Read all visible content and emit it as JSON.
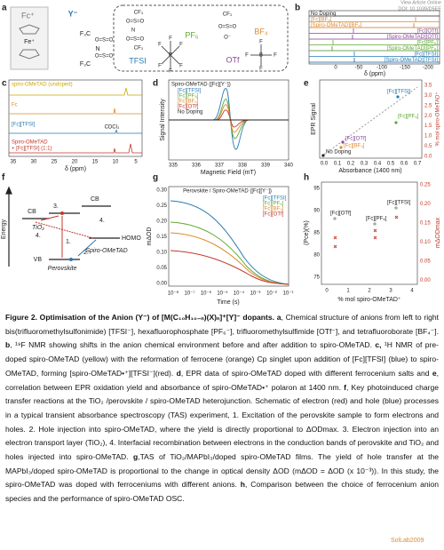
{
  "watermark": {
    "view": "View Article Online",
    "doi": "DOI: 10.1039/D5EE",
    "bottom": "SolLab2009"
  },
  "panels": {
    "a": {
      "label": "a",
      "fc": "Fc⁺",
      "fe": "Fe⁺",
      "y": "Y⁻",
      "f3c": "F₃C",
      "so2": "O=S=O",
      "n": "N",
      "cf3": "CF₃",
      "o": "O⁻",
      "f": "F",
      "p": "P",
      "b": "B",
      "names": [
        "TFSI",
        "PF₆",
        "OTf",
        "BF₄"
      ]
    },
    "b": {
      "label": "b",
      "traces": [
        "No Doping",
        "[Fc][BF₄]",
        "[Spiro-OMeTAD][BF₄]",
        "[Fc][OTf]",
        "[Spiro-OMeTAD][OTf]",
        "[Fc][PF₆]",
        "[Spiro-OMeTAD][PF₆]",
        "[Fc][TFSI]",
        "[Spiro-OMeTAD][TFSI]"
      ],
      "xticks": [
        "0",
        "-50",
        "-100",
        "-150",
        "-200"
      ],
      "xlabel": "δ (ppm)"
    },
    "c": {
      "label": "c",
      "traces": [
        "spiro-OMeTAD (undoped)",
        "Fc",
        "[Fc][TFSI]",
        "Spiro-OMeTAD",
        "+ [Fc][TFSI] (1:1)"
      ],
      "annotation": "CDCl₃",
      "xticks": [
        "35",
        "30",
        "25",
        "20",
        "15",
        "10",
        "5"
      ],
      "xlabel": "δ (ppm)"
    },
    "d": {
      "label": "d",
      "legend_title": "Spiro-OMeTAD ([Fc][Y⁻])",
      "legend": [
        "[Fc][TFSI]",
        "[Fc][PF₆]",
        "[Fc][BF₄]",
        "[Fc][OTf]",
        "No Doping"
      ],
      "ylabel": "Signal Intensity",
      "xticks": [
        "335",
        "336",
        "337",
        "338",
        "339",
        "340"
      ],
      "xlabel": "Magnetic Field (mT)"
    },
    "e": {
      "label": "e",
      "ylabel": "EPR Signal",
      "y2label": "% mol spiro-OMeTAD⁺",
      "xlabel": "Absorbance (1400 nm)",
      "xticks": [
        "0.0",
        "0.1",
        "0.2",
        "0.3",
        "0.4",
        "0.5",
        "0.6",
        "0.7"
      ],
      "y2ticks": [
        "3.5",
        "3.0",
        "2.5",
        "2.0",
        "1.5",
        "1.0",
        "0.5",
        "0.0"
      ],
      "points": [
        "[Fc][TFSI]",
        "[Fc][PF₆]",
        "[Fc][OTf]",
        "[Fc][BF₄]",
        "No Doping"
      ]
    },
    "f": {
      "label": "f",
      "energy": "Energy",
      "cb": "CB",
      "tio2": "TiO₂",
      "vb": "VB",
      "perovskite": "Perovskite",
      "homo": "HOMO",
      "spiro": "Spiro-OMeTAD",
      "steps": [
        "1.",
        "2.",
        "3.",
        "4."
      ]
    },
    "g": {
      "label": "g",
      "title": "Perovskite / Spiro-OMeTAD ([Fc][Y⁻])",
      "legend": [
        "[Fc][TFSI]",
        "[Fc][PF₆]",
        "[Fc][BF₄]",
        "[Fc][OTf]"
      ],
      "ylabel": "mΔOD",
      "yticks": [
        "0.30",
        "0.25",
        "0.20",
        "0.15",
        "0.10",
        "0.05",
        "0.00"
      ],
      "xticks": [
        "10⁻⁸",
        "10⁻⁷",
        "10⁻⁶",
        "10⁻⁵",
        "10⁻⁴",
        "10⁻³",
        "10⁻²",
        "10⁻¹"
      ],
      "xlabel": "Time (s)"
    },
    "h": {
      "label": "h",
      "ylabel": "(Pce)(%)",
      "y2label": "mΔODmax",
      "yticks": [
        "95",
        "90",
        "85",
        "80",
        "75"
      ],
      "y2ticks": [
        "0.25",
        "0.20",
        "0.15",
        "0.10",
        "0.05",
        "0.00"
      ],
      "xticks": [
        "0",
        "1",
        "2",
        "3",
        "4"
      ],
      "xlabel": "% mol spiro-OMeTAD⁺",
      "points": [
        "[Fc][OTf]",
        "[Fc][PF₆]",
        "[Fc][TFSI]"
      ]
    }
  },
  "caption": [
    {
      "text": "Figure 2. Optimisation of the Anion (Y⁻) of [M(C₁₀H₁₀₋ₙ)(X)ₙ]⁺[Y]⁻ dopants.",
      "bold": true
    },
    {
      "text": " "
    },
    {
      "text": "a",
      "bold": true
    },
    {
      "text": ", Chemical structure of anions from left to right bis(trifluoromethylsulfonimide) [TFSI⁻], hexafluorophosphate [PF₆⁻], trifluoromethylsulfimide [OTf⁻], and tetrafluoroborate [BF₄⁻]. "
    },
    {
      "text": "b",
      "bold": true
    },
    {
      "text": ", ¹⁹F NMR showing shifts in the anion chemical environment before and after addition to spiro-OMeTAD. "
    },
    {
      "text": "c,",
      "bold": true
    },
    {
      "text": " ¹H NMR of pre-doped spiro-OMeTAD (yellow) with the reformation of ferrocene (orange) Cp singlet upon addition of [Fc][TFSI] (blue) to spiro-OMeTAD, forming [spiro-OMeTAD•⁺][TFSI⁻](red). "
    },
    {
      "text": "d",
      "bold": true
    },
    {
      "text": ", EPR data of spiro-OMeTAD doped with different ferrocenium salts and "
    },
    {
      "text": "e",
      "bold": true
    },
    {
      "text": ", correlation between EPR oxidation yield and absorbance of spiro-OMeTAD•⁺ polaron at 1400 nm. "
    },
    {
      "text": "f",
      "bold": true
    },
    {
      "text": ", Key photoinduced charge transfer reactions at the TiO₂ /perovskite / spiro-OMeTAD heterojunction. Schematic of electron (red) and hole (blue) processes in a typical transient absorbance spectroscopy (TAS) experiment, 1. Excitation of the perovskite sample to form electrons and holes. 2. Hole injection into spiro-OMeTAD, where the yield is directly proportional to ΔODmax. 3. Electron injection into an electron transport layer (TiO₂), 4. Interfacial recombination between electrons in the conduction bands of perovskite and TiO₂ and holes injected into spiro-OMeTAD. "
    },
    {
      "text": "g",
      "bold": true
    },
    {
      "text": ",TAS of TiO₂/MAPbI₃/doped spiro-OMeTAD films. The yield of hole transfer at the MAPbI₃/doped spiro-OMeTAD is proportional to the change in optical density ΔOD (mΔOD = ΔOD (x 10⁻³)). In this study, the spiro-OMeTAD was doped with ferroceniums with different anions. "
    },
    {
      "text": "h",
      "bold": true
    },
    {
      "text": ", Comparison between the choice of ferrocenium anion species and the performance of spiro-OMeTAD OSC."
    }
  ]
}
